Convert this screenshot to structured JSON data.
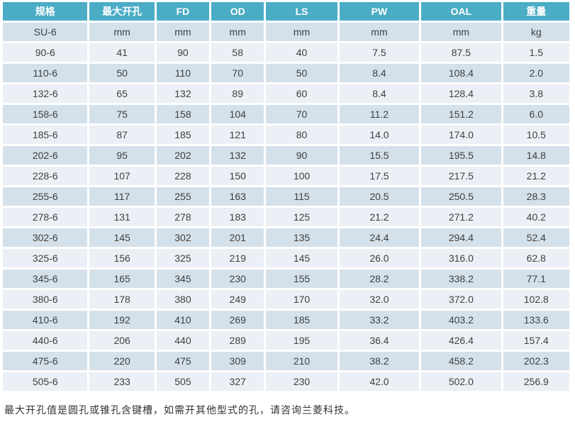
{
  "table": {
    "headers": [
      "规格",
      "最大开孔",
      "FD",
      "OD",
      "LS",
      "PW",
      "OAL",
      "重量"
    ],
    "units": [
      "SU-6",
      "mm",
      "mm",
      "mm",
      "mm",
      "mm",
      "mm",
      "kg"
    ],
    "rows": [
      [
        "90-6",
        "41",
        "90",
        "58",
        "40",
        "7.5",
        "87.5",
        "1.5"
      ],
      [
        "110-6",
        "50",
        "110",
        "70",
        "50",
        "8.4",
        "108.4",
        "2.0"
      ],
      [
        "132-6",
        "65",
        "132",
        "89",
        "60",
        "8.4",
        "128.4",
        "3.8"
      ],
      [
        "158-6",
        "75",
        "158",
        "104",
        "70",
        "11.2",
        "151.2",
        "6.0"
      ],
      [
        "185-6",
        "87",
        "185",
        "121",
        "80",
        "14.0",
        "174.0",
        "10.5"
      ],
      [
        "202-6",
        "95",
        "202",
        "132",
        "90",
        "15.5",
        "195.5",
        "14.8"
      ],
      [
        "228-6",
        "107",
        "228",
        "150",
        "100",
        "17.5",
        "217.5",
        "21.2"
      ],
      [
        "255-6",
        "117",
        "255",
        "163",
        "115",
        "20.5",
        "250.5",
        "28.3"
      ],
      [
        "278-6",
        "131",
        "278",
        "183",
        "125",
        "21.2",
        "271.2",
        "40.2"
      ],
      [
        "302-6",
        "145",
        "302",
        "201",
        "135",
        "24.4",
        "294.4",
        "52.4"
      ],
      [
        "325-6",
        "156",
        "325",
        "219",
        "145",
        "26.0",
        "316.0",
        "62.8"
      ],
      [
        "345-6",
        "165",
        "345",
        "230",
        "155",
        "28.2",
        "338.2",
        "77.1"
      ],
      [
        "380-6",
        "178",
        "380",
        "249",
        "170",
        "32.0",
        "372.0",
        "102.8"
      ],
      [
        "410-6",
        "192",
        "410",
        "269",
        "185",
        "33.2",
        "403.2",
        "133.6"
      ],
      [
        "440-6",
        "206",
        "440",
        "289",
        "195",
        "36.4",
        "426.4",
        "157.4"
      ],
      [
        "475-6",
        "220",
        "475",
        "309",
        "210",
        "38.2",
        "458.2",
        "202.3"
      ],
      [
        "505-6",
        "233",
        "505",
        "327",
        "230",
        "42.0",
        "502.0",
        "256.9"
      ]
    ]
  },
  "footnote": "最大开孔值是圆孔或锥孔含键槽，如需开其他型式的孔，请咨询兰菱科技。",
  "colors": {
    "header_bg": "#4BACC6",
    "header_text": "#FFFFFF",
    "band_dark": "#D4E1EB",
    "band_light": "#EAF0F5",
    "cell_text": "#3F3F3F"
  }
}
